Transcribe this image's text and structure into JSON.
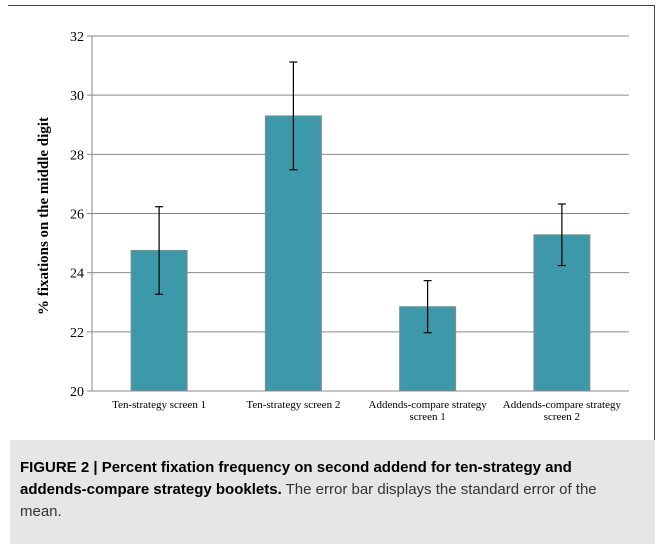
{
  "chart_data": {
    "type": "bar",
    "categories": [
      [
        "Ten-strategy screen 1"
      ],
      [
        "Ten-strategy screen 2"
      ],
      [
        "Addends-compare strategy",
        "screen 1"
      ],
      [
        "Addends-compare strategy",
        "screen 2"
      ]
    ],
    "values": [
      24.75,
      29.3,
      22.85,
      25.28
    ],
    "error": [
      1.48,
      1.82,
      0.88,
      1.04
    ],
    "ylabel": "% fixations on the middle digit",
    "xlabel": "",
    "ylim": [
      20,
      32
    ],
    "yticks": [
      20,
      22,
      24,
      26,
      28,
      30,
      32
    ],
    "grid": true,
    "bar_color": "#3d98aa",
    "bar_edge_color": "#8a8a8a",
    "grid_color": "#8a8a8a"
  },
  "caption": {
    "bold": "FIGURE 2 | Percent fixation frequency on second addend for ten-strategy and addends-compare strategy booklets.",
    "text": " The error bar displays the standard error of the mean."
  },
  "colors": {
    "panel_background": "#e6e6e6",
    "caption_text": "#333333"
  }
}
